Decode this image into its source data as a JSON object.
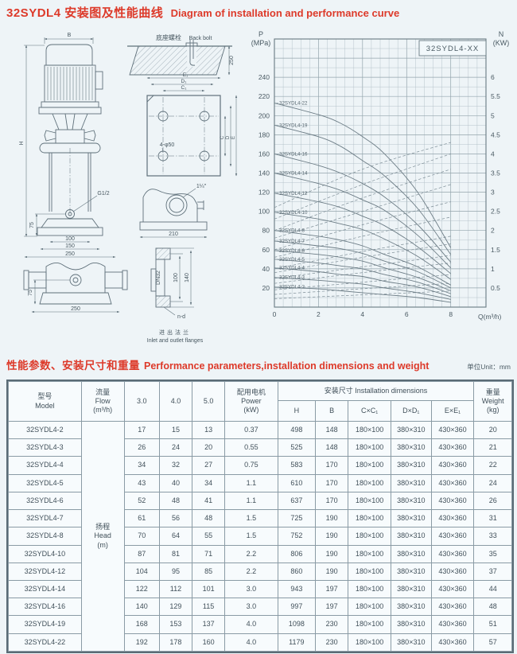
{
  "header": {
    "title_cn": "32SYDL4 安装图及性能曲线",
    "title_en": "Diagram of installation and performance curve"
  },
  "section": {
    "heading_cn": "性能参数、安装尺寸和重量",
    "heading_en": "Performance parameters,installation dimensions and weight",
    "unit_note": "单位Unit：mm"
  },
  "colors": {
    "accent_red": "#dd3a2a",
    "page_bg": "#eef4f7",
    "line_gray": "#5f707a",
    "table_cell_bg": "#f7fbfd",
    "table_border": "#8a9ba5"
  },
  "diagram": {
    "front": {
      "b": "B",
      "h": "H",
      "g_port": "G1/2",
      "d75": "75",
      "d100": "100",
      "d150": "150",
      "d250": "250"
    },
    "back_bolt": {
      "cn": "底座螺栓",
      "en": "Back bolt",
      "d250": "250"
    },
    "plate": {
      "e1": "E₁",
      "d1": "D₁",
      "c1": "C₁",
      "c": "C",
      "d": "D",
      "e": "E",
      "holes": "4-φ50"
    },
    "side": {
      "inch": "1¼″",
      "d210": "210"
    },
    "saddle": {
      "d75": "75",
      "d250": "250"
    },
    "flange": {
      "dn": "DN32",
      "d100": "100",
      "d140": "140",
      "nd": "n-d",
      "cn": "进出法兰",
      "en": "Inlet and outlet flanges"
    }
  },
  "chart_data": {
    "type": "line",
    "legend": "32SYDL4-XX",
    "x_axis": {
      "title": "Q(m³/h)",
      "ticks": [
        0,
        2,
        4,
        6,
        8
      ],
      "minor_step": 0.4,
      "range": [
        0,
        9.6
      ]
    },
    "y_left": {
      "title_line1": "P",
      "title_line2": "(MPa)",
      "ticks": [
        240,
        220,
        200,
        180,
        160,
        140,
        120,
        100,
        80,
        60,
        40,
        20
      ],
      "minor_step": 10,
      "range": [
        0,
        280
      ]
    },
    "y_right": {
      "title_line1": "N",
      "title_line2": "(KW)",
      "ticks": [
        6,
        5.5,
        5,
        4.5,
        4,
        3.5,
        3,
        2.5,
        2,
        1.5,
        1,
        0.5
      ],
      "range": [
        0,
        7
      ]
    },
    "head_curves": [
      {
        "name": "32SYDL4-22",
        "points": [
          [
            0,
            213
          ],
          [
            2,
            201
          ],
          [
            3,
            192
          ],
          [
            4,
            178
          ],
          [
            5,
            160
          ],
          [
            6.5,
            120
          ],
          [
            8,
            62
          ]
        ]
      },
      {
        "name": "32SYDL4-19",
        "points": [
          [
            0,
            190
          ],
          [
            2,
            178
          ],
          [
            3,
            168
          ],
          [
            4,
            153
          ],
          [
            5,
            137
          ],
          [
            6.5,
            103
          ],
          [
            8,
            55
          ]
        ]
      },
      {
        "name": "32SYDL4-16",
        "points": [
          [
            0,
            160
          ],
          [
            2,
            148
          ],
          [
            3,
            140
          ],
          [
            4,
            129
          ],
          [
            5,
            115
          ],
          [
            6.5,
            86
          ],
          [
            8,
            47
          ]
        ]
      },
      {
        "name": "32SYDL4-14",
        "points": [
          [
            0,
            140
          ],
          [
            2,
            129
          ],
          [
            3,
            122
          ],
          [
            4,
            112
          ],
          [
            5,
            101
          ],
          [
            6.5,
            75
          ],
          [
            8,
            41
          ]
        ]
      },
      {
        "name": "32SYDL4-12",
        "points": [
          [
            0,
            119
          ],
          [
            2,
            110
          ],
          [
            3,
            104
          ],
          [
            4,
            95
          ],
          [
            5,
            85
          ],
          [
            6.5,
            63
          ],
          [
            8,
            35
          ]
        ]
      },
      {
        "name": "32SYDL4-10",
        "points": [
          [
            0,
            99
          ],
          [
            2,
            92
          ],
          [
            3,
            87
          ],
          [
            4,
            81
          ],
          [
            5,
            71
          ],
          [
            6.5,
            53
          ],
          [
            8,
            29
          ]
        ]
      },
      {
        "name": "32SYDL4-8",
        "points": [
          [
            0,
            80
          ],
          [
            2,
            74
          ],
          [
            3,
            70
          ],
          [
            4,
            64
          ],
          [
            5,
            55
          ],
          [
            6.5,
            42
          ],
          [
            8,
            23
          ]
        ]
      },
      {
        "name": "32SYDL4-7",
        "points": [
          [
            0,
            69
          ],
          [
            2,
            64
          ],
          [
            3,
            61
          ],
          [
            4,
            56
          ],
          [
            5,
            48
          ],
          [
            6.5,
            37
          ],
          [
            8,
            20
          ]
        ]
      },
      {
        "name": "32SYDL4-6",
        "points": [
          [
            0,
            59
          ],
          [
            2,
            55
          ],
          [
            3,
            52
          ],
          [
            4,
            48
          ],
          [
            5,
            41
          ],
          [
            6.5,
            31
          ],
          [
            8,
            17
          ]
        ]
      },
      {
        "name": "32SYDL4-5",
        "points": [
          [
            0,
            50
          ],
          [
            2,
            46
          ],
          [
            3,
            43
          ],
          [
            4,
            40
          ],
          [
            5,
            34
          ],
          [
            6.5,
            26
          ],
          [
            8,
            14
          ]
        ]
      },
      {
        "name": "32SYDL4-4",
        "points": [
          [
            0,
            41
          ],
          [
            2,
            37
          ],
          [
            3,
            34
          ],
          [
            4,
            32
          ],
          [
            5,
            27
          ],
          [
            6.5,
            21
          ],
          [
            8,
            11
          ]
        ]
      },
      {
        "name": "32SYDL4-3",
        "points": [
          [
            0,
            31
          ],
          [
            2,
            28
          ],
          [
            3,
            26
          ],
          [
            4,
            24
          ],
          [
            5,
            20
          ],
          [
            6.5,
            15
          ],
          [
            8,
            8
          ]
        ]
      },
      {
        "name": "32SYDL4-2",
        "points": [
          [
            0,
            21
          ],
          [
            2,
            19
          ],
          [
            3,
            17
          ],
          [
            4,
            15
          ],
          [
            5,
            13
          ],
          [
            6.5,
            10
          ],
          [
            8,
            5
          ]
        ]
      }
    ],
    "power_curves": [
      {
        "name": "32SYDL4-22",
        "points": [
          [
            0,
            2.6
          ],
          [
            4,
            3.6
          ],
          [
            8,
            4.3
          ]
        ]
      },
      {
        "name": "32SYDL4-19",
        "points": [
          [
            0,
            2.3
          ],
          [
            4,
            3.2
          ],
          [
            8,
            4.0
          ]
        ]
      },
      {
        "name": "32SYDL4-16",
        "points": [
          [
            0,
            2.0
          ],
          [
            4,
            2.85
          ],
          [
            8,
            3.6
          ]
        ]
      },
      {
        "name": "32SYDL4-14",
        "points": [
          [
            0,
            1.8
          ],
          [
            4,
            2.5
          ],
          [
            8,
            3.2
          ]
        ]
      },
      {
        "name": "32SYDL4-12",
        "points": [
          [
            0,
            1.5
          ],
          [
            4,
            2.15
          ],
          [
            8,
            2.75
          ]
        ]
      },
      {
        "name": "32SYDL4-10",
        "points": [
          [
            0,
            1.3
          ],
          [
            4,
            1.85
          ],
          [
            8,
            2.35
          ]
        ]
      },
      {
        "name": "32SYDL4-8",
        "points": [
          [
            0,
            1.0
          ],
          [
            4,
            1.45
          ],
          [
            8,
            1.85
          ]
        ]
      },
      {
        "name": "32SYDL4-7",
        "points": [
          [
            0,
            0.9
          ],
          [
            4,
            1.3
          ],
          [
            8,
            1.65
          ]
        ]
      },
      {
        "name": "32SYDL4-6",
        "points": [
          [
            0,
            0.75
          ],
          [
            4,
            1.05
          ],
          [
            8,
            1.35
          ]
        ]
      },
      {
        "name": "32SYDL4-5",
        "points": [
          [
            0,
            0.62
          ],
          [
            4,
            0.9
          ],
          [
            8,
            1.15
          ]
        ]
      },
      {
        "name": "32SYDL4-4",
        "points": [
          [
            0,
            0.45
          ],
          [
            4,
            0.65
          ],
          [
            8,
            0.85
          ]
        ]
      },
      {
        "name": "32SYDL4-3",
        "points": [
          [
            0,
            0.33
          ],
          [
            4,
            0.48
          ],
          [
            8,
            0.62
          ]
        ]
      },
      {
        "name": "32SYDL4-2",
        "points": [
          [
            0,
            0.22
          ],
          [
            4,
            0.32
          ],
          [
            8,
            0.42
          ]
        ]
      }
    ]
  },
  "table": {
    "columns": {
      "model_cn": "型号",
      "model_en": "Model",
      "flow_cn": "流量",
      "flow_en": "Flow",
      "flow_unit": "(m³/h)",
      "q1": "3.0",
      "q2": "4.0",
      "q3": "5.0",
      "power_cn": "配用电机",
      "power_en": "Power",
      "power_unit": "(kW)",
      "install_cn": "安装尺寸",
      "install_en": "Installation dimensions",
      "h": "H",
      "b": "B",
      "cc": "C×C₁",
      "dd": "D×D₁",
      "ee": "E×E₁",
      "weight_cn": "重量",
      "weight_en": "Weight",
      "weight_unit": "(kg)"
    },
    "head_cell": {
      "cn": "扬程",
      "en": "Head",
      "unit": "(m)"
    },
    "rows": [
      [
        "32SYDL4-2",
        "17",
        "15",
        "13",
        "0.37",
        "498",
        "148",
        "180×100",
        "380×310",
        "430×360",
        "20"
      ],
      [
        "32SYDL4-3",
        "26",
        "24",
        "20",
        "0.55",
        "525",
        "148",
        "180×100",
        "380×310",
        "430×360",
        "21"
      ],
      [
        "32SYDL4-4",
        "34",
        "32",
        "27",
        "0.75",
        "583",
        "170",
        "180×100",
        "380×310",
        "430×360",
        "22"
      ],
      [
        "32SYDL4-5",
        "43",
        "40",
        "34",
        "1.1",
        "610",
        "170",
        "180×100",
        "380×310",
        "430×360",
        "24"
      ],
      [
        "32SYDL4-6",
        "52",
        "48",
        "41",
        "1.1",
        "637",
        "170",
        "180×100",
        "380×310",
        "430×360",
        "26"
      ],
      [
        "32SYDL4-7",
        "61",
        "56",
        "48",
        "1.5",
        "725",
        "190",
        "180×100",
        "380×310",
        "430×360",
        "31"
      ],
      [
        "32SYDL4-8",
        "70",
        "64",
        "55",
        "1.5",
        "752",
        "190",
        "180×100",
        "380×310",
        "430×360",
        "33"
      ],
      [
        "32SYDL4-10",
        "87",
        "81",
        "71",
        "2.2",
        "806",
        "190",
        "180×100",
        "380×310",
        "430×360",
        "35"
      ],
      [
        "32SYDL4-12",
        "104",
        "95",
        "85",
        "2.2",
        "860",
        "190",
        "180×100",
        "380×310",
        "430×360",
        "37"
      ],
      [
        "32SYDL4-14",
        "122",
        "112",
        "101",
        "3.0",
        "943",
        "197",
        "180×100",
        "380×310",
        "430×360",
        "44"
      ],
      [
        "32SYDL4-16",
        "140",
        "129",
        "115",
        "3.0",
        "997",
        "197",
        "180×100",
        "380×310",
        "430×360",
        "48"
      ],
      [
        "32SYDL4-19",
        "168",
        "153",
        "137",
        "4.0",
        "1098",
        "230",
        "180×100",
        "380×310",
        "430×360",
        "51"
      ],
      [
        "32SYDL4-22",
        "192",
        "178",
        "160",
        "4.0",
        "1179",
        "230",
        "180×100",
        "380×310",
        "430×360",
        "57"
      ]
    ]
  }
}
